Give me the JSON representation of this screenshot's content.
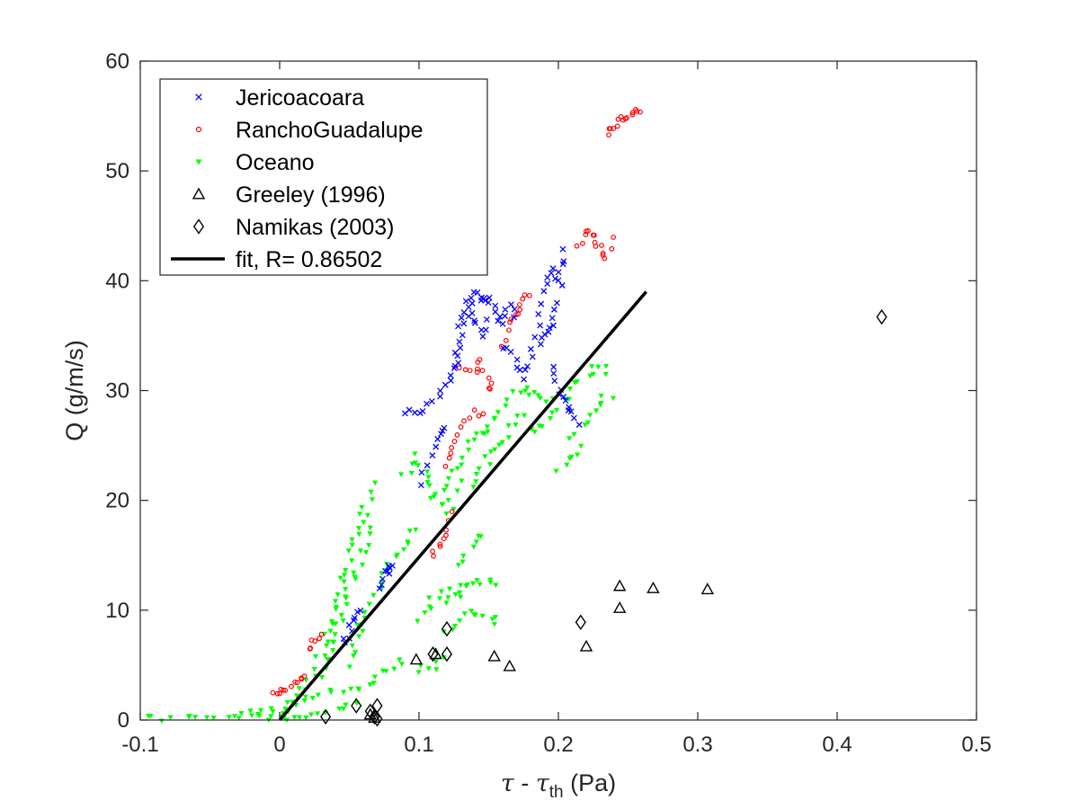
{
  "chart_data": {
    "type": "scatter",
    "xlabel": {
      "sym": "τ",
      "sep": " - ",
      "sym2": "τ",
      "sub": "th",
      "unit": " (Pa)"
    },
    "ylabel": "Q (g/m/s)",
    "xlim": [
      -0.1,
      0.5
    ],
    "ylim": [
      0,
      60
    ],
    "x_ticks": [
      -0.1,
      0,
      0.1,
      0.2,
      0.3,
      0.4,
      0.5
    ],
    "x_tick_labels": [
      "-0.1",
      "0",
      "0.1",
      "0.2",
      "0.3",
      "0.4",
      "0.5"
    ],
    "y_ticks": [
      0,
      10,
      20,
      30,
      40,
      50,
      60
    ],
    "y_tick_labels": [
      "0",
      "10",
      "20",
      "30",
      "40",
      "50",
      "60"
    ],
    "grid": false,
    "legend_position": "top-left",
    "colors": {
      "jericoacoara": "#0000ff",
      "rancho": "#ff0000",
      "oceano": "#00ff00",
      "black": "#000000"
    },
    "series": [
      {
        "name": "Jericoacoara",
        "marker": "x",
        "color": "#0000ff",
        "polylines": [
          [
            [
              0.09,
              28.0
            ],
            [
              0.1,
              28.0
            ],
            [
              0.11,
              29.0
            ],
            [
              0.12,
              30.5
            ],
            [
              0.125,
              32
            ],
            [
              0.13,
              34
            ],
            [
              0.135,
              37
            ],
            [
              0.14,
              39.2
            ],
            [
              0.145,
              38
            ],
            [
              0.15,
              38.5
            ],
            [
              0.155,
              37
            ],
            [
              0.16,
              36
            ],
            [
              0.165,
              38
            ],
            [
              0.17,
              36
            ]
          ],
          [
            [
              0.125,
              32
            ],
            [
              0.13,
              36
            ],
            [
              0.135,
              38
            ],
            [
              0.14,
              36.5
            ],
            [
              0.145,
              35
            ],
            [
              0.15,
              37
            ]
          ],
          [
            [
              0.16,
              34
            ],
            [
              0.17,
              33
            ],
            [
              0.175,
              31
            ],
            [
              0.18,
              33
            ],
            [
              0.185,
              36
            ],
            [
              0.19,
              39
            ],
            [
              0.195,
              41
            ],
            [
              0.2,
              40
            ],
            [
              0.205,
              43
            ],
            [
              0.2,
              38
            ],
            [
              0.195,
              36
            ],
            [
              0.19,
              35
            ],
            [
              0.185,
              34
            ]
          ],
          [
            [
              0.195,
              32
            ],
            [
              0.2,
              30
            ],
            [
              0.205,
              29
            ],
            [
              0.21,
              28
            ],
            [
              0.215,
              26
            ]
          ],
          [
            [
              0.1,
              21.5
            ],
            [
              0.11,
              24
            ],
            [
              0.115,
              26
            ],
            [
              0.12,
              27
            ]
          ],
          [
            [
              0.07,
              12
            ],
            [
              0.075,
              13.5
            ],
            [
              0.08,
              14.3
            ],
            [
              0.078,
              12.5
            ]
          ],
          [
            [
              0.045,
              7
            ],
            [
              0.05,
              8
            ],
            [
              0.055,
              9.5
            ],
            [
              0.06,
              10.5
            ]
          ]
        ]
      },
      {
        "name": "RanchoGuadalupe",
        "marker": "o",
        "color": "#ff0000",
        "polylines": [
          [
            [
              -0.005,
              2.6
            ],
            [
              0.0,
              2.6
            ],
            [
              0.005,
              2.7
            ]
          ],
          [
            [
              0.01,
              3.2
            ],
            [
              0.015,
              3.6
            ],
            [
              0.02,
              4.5
            ]
          ],
          [
            [
              0.02,
              6.5
            ],
            [
              0.025,
              7.3
            ],
            [
              0.03,
              7.8
            ]
          ],
          [
            [
              0.11,
              15
            ],
            [
              0.115,
              16
            ],
            [
              0.12,
              17.5
            ],
            [
              0.125,
              19.5
            ]
          ],
          [
            [
              0.12,
              23
            ],
            [
              0.125,
              25
            ],
            [
              0.13,
              26.5
            ],
            [
              0.14,
              28
            ],
            [
              0.15,
              27.5
            ]
          ],
          [
            [
              0.13,
              32
            ],
            [
              0.14,
              31.5
            ],
            [
              0.145,
              33
            ],
            [
              0.15,
              30
            ],
            [
              0.155,
              31
            ]
          ],
          [
            [
              0.16,
              34
            ],
            [
              0.165,
              36
            ],
            [
              0.17,
              37
            ],
            [
              0.175,
              38.5
            ],
            [
              0.18,
              38.6
            ]
          ],
          [
            [
              0.215,
              43
            ],
            [
              0.22,
              44.5
            ],
            [
              0.225,
              44
            ],
            [
              0.23,
              43
            ],
            [
              0.235,
              42
            ],
            [
              0.24,
              45
            ]
          ],
          [
            [
              0.235,
              53.5
            ],
            [
              0.24,
              54
            ],
            [
              0.245,
              54.7
            ],
            [
              0.25,
              55
            ],
            [
              0.255,
              55.5
            ],
            [
              0.26,
              55.5
            ]
          ]
        ]
      },
      {
        "name": "Oceano",
        "marker": "v",
        "color": "#00ff00",
        "polylines": [
          [
            [
              -0.1,
              0.0
            ],
            [
              -0.05,
              0.0
            ],
            [
              0.0,
              0.1
            ],
            [
              0.02,
              0.4
            ],
            [
              0.04,
              0.9
            ],
            [
              0.06,
              1.3
            ]
          ],
          [
            [
              -0.03,
              0.3
            ],
            [
              0.0,
              1.0
            ],
            [
              0.02,
              2.0
            ],
            [
              0.04,
              2.5
            ],
            [
              0.06,
              2.5
            ]
          ],
          [
            [
              0.0,
              0.5
            ],
            [
              0.02,
              3
            ],
            [
              0.03,
              6
            ],
            [
              0.04,
              11
            ],
            [
              0.05,
              14
            ],
            [
              0.06,
              19
            ],
            [
              0.07,
              22
            ]
          ],
          [
            [
              0.03,
              4
            ],
            [
              0.04,
              8
            ],
            [
              0.05,
              12
            ],
            [
              0.06,
              15
            ],
            [
              0.07,
              18
            ]
          ],
          [
            [
              0.05,
              5
            ],
            [
              0.06,
              9
            ],
            [
              0.07,
              12
            ],
            [
              0.08,
              14
            ],
            [
              0.09,
              16
            ],
            [
              0.1,
              18
            ]
          ],
          [
            [
              0.09,
              22
            ],
            [
              0.1,
              24
            ],
            [
              0.11,
              21
            ],
            [
              0.12,
              19
            ],
            [
              0.13,
              22
            ]
          ],
          [
            [
              0.1,
              9
            ],
            [
              0.11,
              11
            ],
            [
              0.12,
              12
            ],
            [
              0.13,
              11
            ]
          ],
          [
            [
              0.1,
              4.5
            ],
            [
              0.11,
              5
            ],
            [
              0.12,
              5.5
            ]
          ],
          [
            [
              0.12,
              8
            ],
            [
              0.13,
              9
            ],
            [
              0.14,
              10
            ],
            [
              0.15,
              9.5
            ],
            [
              0.16,
              8.5
            ]
          ],
          [
            [
              0.12,
              10.5
            ],
            [
              0.13,
              12
            ],
            [
              0.14,
              12.5
            ],
            [
              0.15,
              12.6
            ],
            [
              0.16,
              12.7
            ]
          ],
          [
            [
              0.13,
              14
            ],
            [
              0.14,
              16
            ],
            [
              0.145,
              17
            ]
          ],
          [
            [
              0.11,
              20
            ],
            [
              0.12,
              22
            ],
            [
              0.13,
              24
            ],
            [
              0.14,
              26
            ],
            [
              0.15,
              27
            ]
          ],
          [
            [
              0.14,
              21
            ],
            [
              0.15,
              24
            ],
            [
              0.16,
              25
            ],
            [
              0.17,
              27
            ],
            [
              0.18,
              28
            ]
          ],
          [
            [
              0.15,
              26
            ],
            [
              0.16,
              29
            ],
            [
              0.17,
              30
            ],
            [
              0.18,
              30
            ],
            [
              0.19,
              29.5
            ],
            [
              0.2,
              29
            ]
          ],
          [
            [
              0.18,
              26
            ],
            [
              0.19,
              27
            ],
            [
              0.2,
              28.5
            ],
            [
              0.21,
              30
            ],
            [
              0.22,
              31.5
            ],
            [
              0.23,
              32.5
            ],
            [
              0.24,
              31
            ]
          ],
          [
            [
              0.2,
              23
            ],
            [
              0.21,
              24
            ],
            [
              0.215,
              25.5
            ]
          ],
          [
            [
              0.21,
              26
            ],
            [
              0.22,
              27
            ],
            [
              0.23,
              29
            ],
            [
              0.24,
              30
            ]
          ],
          [
            [
              0.06,
              3
            ],
            [
              0.07,
              4
            ],
            [
              0.08,
              5
            ],
            [
              0.09,
              5.5
            ]
          ]
        ]
      },
      {
        "name": "Greeley (1996)",
        "marker": "triangle",
        "color": "#000000",
        "points": [
          [
            0.098,
            5.5
          ],
          [
            0.112,
            6.0
          ],
          [
            0.154,
            5.8
          ],
          [
            0.165,
            4.9
          ],
          [
            0.22,
            6.7
          ],
          [
            0.244,
            12.2
          ],
          [
            0.244,
            10.2
          ],
          [
            0.268,
            12.0
          ],
          [
            0.307,
            11.9
          ],
          [
            0.065,
            0.5
          ],
          [
            0.068,
            0.2
          ]
        ]
      },
      {
        "name": "Namikas (2003)",
        "marker": "diamond",
        "color": "#000000",
        "points": [
          [
            0.432,
            36.7
          ],
          [
            0.216,
            8.9
          ],
          [
            0.12,
            8.3
          ],
          [
            0.12,
            6.0
          ],
          [
            0.11,
            6.0
          ],
          [
            0.055,
            1.3
          ],
          [
            0.07,
            1.3
          ],
          [
            0.065,
            0.8
          ],
          [
            0.033,
            0.3
          ],
          [
            0.068,
            0.3
          ],
          [
            0.07,
            0.1
          ]
        ]
      },
      {
        "name": "fit, R= 0.86502",
        "marker": "line",
        "color": "#000000",
        "points": [
          [
            0.0,
            0.0
          ],
          [
            0.263,
            39.0
          ]
        ]
      }
    ]
  }
}
